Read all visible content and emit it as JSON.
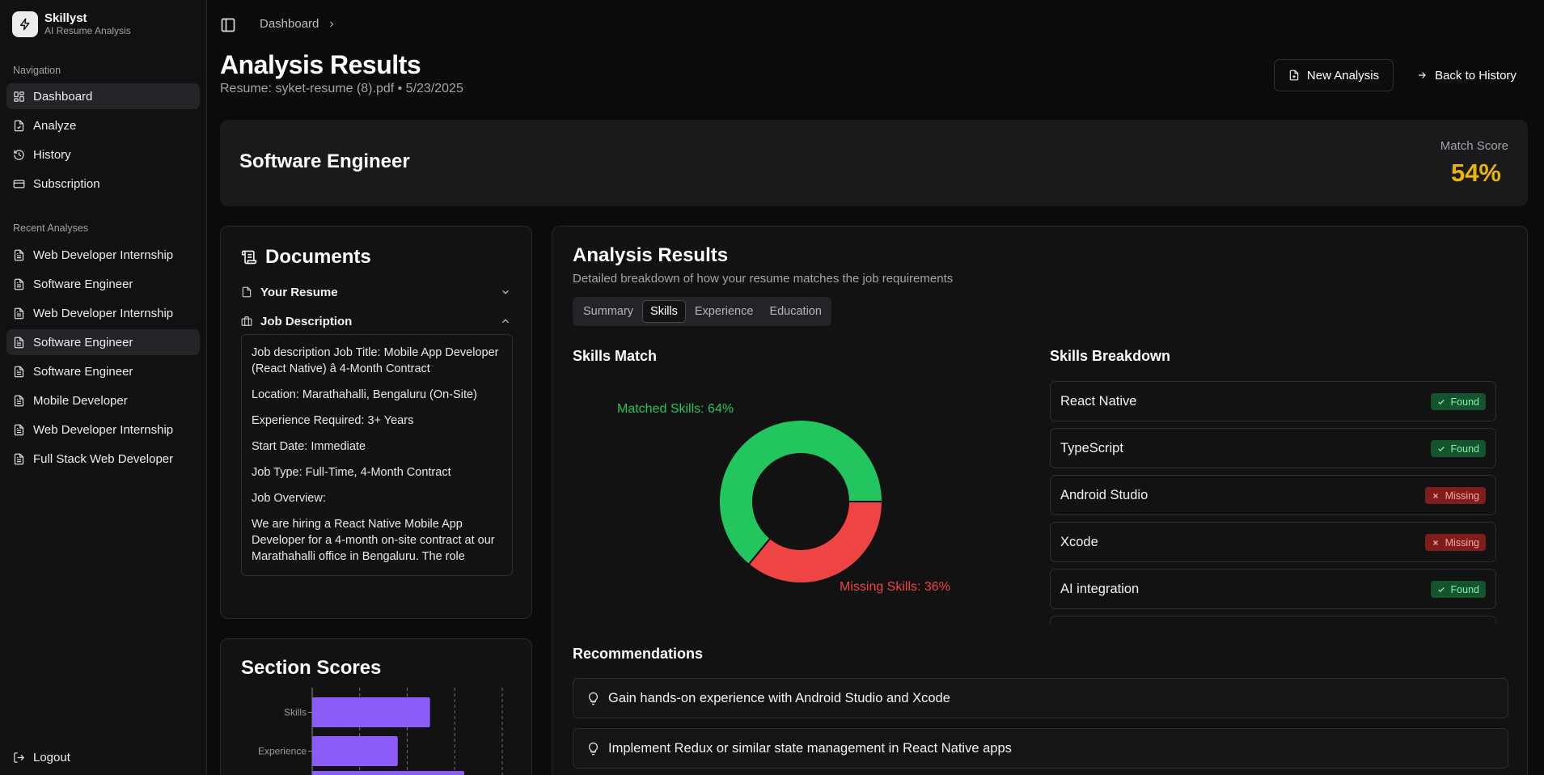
{
  "app": {
    "name": "Skillyst",
    "tagline": "AI Resume Analysis"
  },
  "sidebar": {
    "nav_label": "Navigation",
    "nav": [
      {
        "label": "Dashboard",
        "icon": "dashboard-icon"
      },
      {
        "label": "Analyze",
        "icon": "file-icon"
      },
      {
        "label": "History",
        "icon": "history-icon"
      },
      {
        "label": "Subscription",
        "icon": "credit-card-icon"
      }
    ],
    "recent_label": "Recent Analyses",
    "recent": [
      "Web Developer Internship",
      "Software Engineer",
      "Web Developer Internship",
      "Software Engineer",
      "Software Engineer",
      "Mobile Developer",
      "Web Developer Internship",
      "Full Stack Web Developer"
    ],
    "logout": "Logout"
  },
  "header": {
    "breadcrumb": "Dashboard",
    "title": "Analysis Results",
    "subtitle": "Resume: syket-resume (8).pdf • 5/23/2025",
    "new_analysis": "New Analysis",
    "back_history": "Back to History"
  },
  "job": {
    "title": "Software Engineer",
    "match_label": "Match Score",
    "match_value": "54%",
    "match_color": "#eab308"
  },
  "documents": {
    "title": "Documents",
    "resume_label": "Your Resume",
    "jd_label": "Job Description",
    "jd_paragraphs": [
      "Job description Job Title: Mobile App Developer (React Native) â 4-Month Contract",
      "Location: Marathahalli, Bengaluru (On-Site)",
      "Experience Required: 3+ Years",
      "Start Date: Immediate",
      "Job Type: Full-Time, 4-Month Contract",
      "Job Overview:",
      "We are hiring a React Native Mobile App Developer for a 4-month on-site contract at our Marathahalli office in Bengaluru. The role"
    ]
  },
  "section_scores": {
    "title": "Section Scores",
    "chart_data": {
      "type": "bar",
      "orientation": "horizontal",
      "categories": [
        "Skills",
        "Experience"
      ],
      "values": [
        62,
        45
      ],
      "xlim": [
        0,
        100
      ],
      "grid": true
    }
  },
  "analysis": {
    "title": "Analysis Results",
    "subtitle": "Detailed breakdown of how your resume matches the job requirements",
    "tabs": [
      "Summary",
      "Skills",
      "Experience",
      "Education"
    ],
    "active_tab": "Skills",
    "skills_match_title": "Skills Match",
    "skills_breakdown_title": "Skills Breakdown",
    "chart_data": {
      "type": "pie",
      "labels": [
        "Matched Skills",
        "Missing Skills"
      ],
      "values": [
        64,
        36
      ],
      "label_texts": [
        "Matched Skills: 64%",
        "Missing Skills: 36%"
      ],
      "colors": [
        "#22c55e",
        "#ef4444"
      ]
    },
    "skills": [
      {
        "name": "React Native",
        "status": "Found"
      },
      {
        "name": "TypeScript",
        "status": "Found"
      },
      {
        "name": "Android Studio",
        "status": "Missing"
      },
      {
        "name": "Xcode",
        "status": "Missing"
      },
      {
        "name": "AI integration",
        "status": "Found"
      }
    ],
    "recommendations_title": "Recommendations",
    "recommendations": [
      "Gain hands-on experience with Android Studio and Xcode",
      "Implement Redux or similar state management in React Native apps"
    ]
  }
}
